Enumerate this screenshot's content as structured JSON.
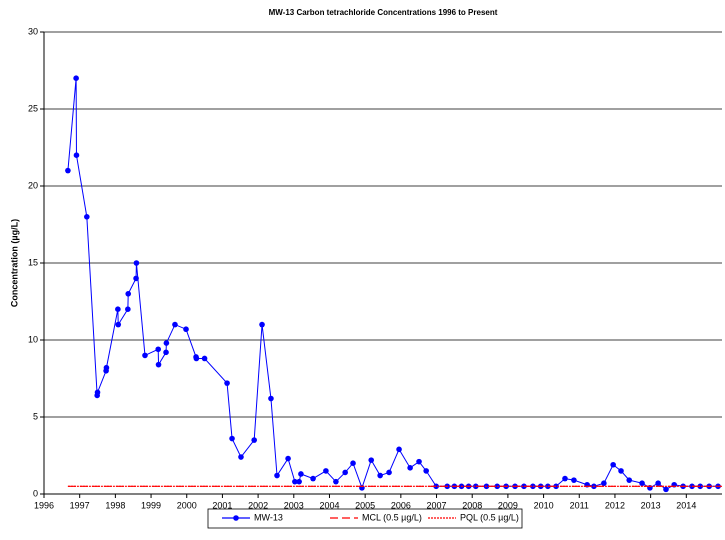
{
  "chart_data": {
    "type": "line",
    "title": "MW-13 Carbon tetrachloride Concentrations 1996 to Present",
    "y_label": "Concentration (µg/L)",
    "xlim": [
      1996,
      2015
    ],
    "xticks": [
      1996,
      1997,
      1998,
      1999,
      2000,
      2001,
      2002,
      2003,
      2004,
      2005,
      2006,
      2007,
      2008,
      2009,
      2010,
      2011,
      2012,
      2013,
      2014
    ],
    "ylim": [
      0,
      30
    ],
    "yticks": [
      0,
      5,
      10,
      15,
      20,
      25,
      30
    ],
    "grid": true,
    "legend": "bottom",
    "series": [
      {
        "name": "MW-13",
        "color": "#0000ff",
        "marker": "circle",
        "x": [
          1996.67,
          1996.9,
          1996.91,
          1997.2,
          1997.49,
          1997.5,
          1997.74,
          1997.75,
          1998.07,
          1998.08,
          1998.35,
          1998.36,
          1998.58,
          1998.59,
          1998.83,
          1999.2,
          1999.21,
          1999.42,
          1999.43,
          1999.67,
          1999.98,
          2000.26,
          2000.27,
          2000.5,
          2001.13,
          2001.27,
          2001.52,
          2001.89,
          2002.11,
          2002.36,
          2002.53,
          2002.84,
          2003.03,
          2003.15,
          2003.2,
          2003.54,
          2003.9,
          2004.18,
          2004.44,
          2004.66,
          2004.91,
          2005.17,
          2005.42,
          2005.67,
          2005.95,
          2006.26,
          2006.51,
          2006.71,
          2006.99,
          2007.3,
          2007.5,
          2007.7,
          2007.9,
          2008.1,
          2008.4,
          2008.7,
          2008.95,
          2009.2,
          2009.45,
          2009.7,
          2009.92,
          2010.12,
          2010.35,
          2010.6,
          2010.85,
          2011.22,
          2011.41,
          2011.69,
          2011.95,
          2012.17,
          2012.4,
          2012.76,
          2012.98,
          2013.21,
          2013.43,
          2013.66,
          2013.91,
          2014.16,
          2014.39,
          2014.64,
          2014.89
        ],
        "values": [
          21,
          27,
          22,
          18,
          6.4,
          6.6,
          8.0,
          8.2,
          12,
          11,
          12,
          13,
          14,
          15,
          9,
          9.4,
          8.4,
          9.2,
          9.8,
          11,
          10.7,
          8.9,
          8.8,
          8.8,
          7.2,
          3.6,
          2.4,
          3.5,
          11,
          6.2,
          1.2,
          2.3,
          0.8,
          0.8,
          1.3,
          1.0,
          1.5,
          0.8,
          1.4,
          2.0,
          0.4,
          2.2,
          1.2,
          1.4,
          2.9,
          1.7,
          2.1,
          1.5,
          0.5,
          0.5,
          0.5,
          0.5,
          0.5,
          0.5,
          0.5,
          0.5,
          0.5,
          0.5,
          0.5,
          0.5,
          0.5,
          0.5,
          0.5,
          1.0,
          0.9,
          0.6,
          0.5,
          0.7,
          1.9,
          1.5,
          0.9,
          0.7,
          0.4,
          0.7,
          0.3,
          0.6,
          0.5,
          0.5,
          0.5,
          0.5,
          0.5
        ]
      },
      {
        "name": "MCL (0.5 µg/L)",
        "color": "#ff0000",
        "dash": "8,4",
        "x": [
          1996.67,
          2015
        ],
        "values": [
          0.5,
          0.5
        ]
      },
      {
        "name": "PQL (0.5 µg/L)",
        "color": "#ff0000",
        "dash": "2,1",
        "x": [
          1996.67,
          2015
        ],
        "values": [
          0.5,
          0.5
        ]
      }
    ]
  }
}
